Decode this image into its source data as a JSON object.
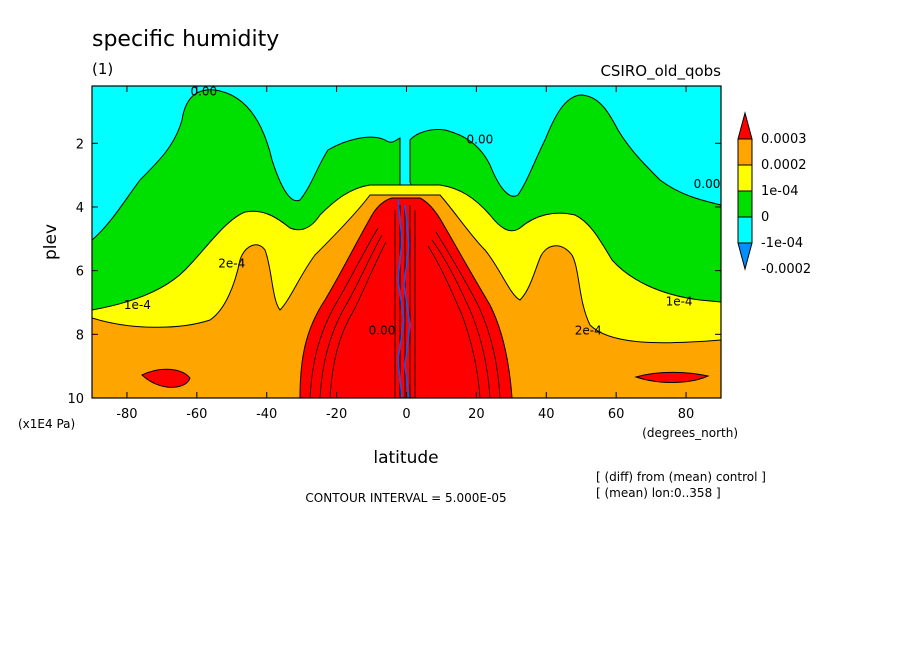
{
  "header": {
    "title": "specific humidity",
    "panel_label": "(1)",
    "dataset": "CSIRO_old_qobs",
    "contour_interval": "CONTOUR INTERVAL = 5.000E-05",
    "diff_note": "[ (diff) from (mean) control ]",
    "mean_note": "[ (mean) lon:0..358 ]"
  },
  "chart_data": {
    "type": "heatmap",
    "title": "specific humidity",
    "xlabel": "latitude",
    "xunits": "(degrees_north)",
    "ylabel": "plev",
    "yunits": "(x1E4 Pa)",
    "xlim": [
      -90,
      90
    ],
    "ylim": [
      10,
      0.2
    ],
    "x_ticks": [
      -80,
      -60,
      -40,
      -20,
      0,
      20,
      40,
      60,
      80
    ],
    "y_ticks": [
      2,
      4,
      6,
      8,
      10
    ],
    "colorbar": {
      "levels": [
        "0.0003",
        "0.0002",
        "1e-04",
        "0",
        "-1e-04",
        "-0.0002"
      ],
      "colors": [
        "#ff0000",
        "#ffa500",
        "#ffff00",
        "#00e000",
        "#00ffff",
        "#0090ff"
      ]
    },
    "contour_labels": [
      {
        "text": "0.00",
        "x": -58,
        "y": 0.5
      },
      {
        "text": "0.00",
        "x": 21,
        "y": 2.0
      },
      {
        "text": "0.00",
        "x": 86,
        "y": 3.4
      },
      {
        "text": "1e-4",
        "x": -77,
        "y": 7.2
      },
      {
        "text": "1e-4",
        "x": 78,
        "y": 7.1
      },
      {
        "text": "2e-4",
        "x": -50,
        "y": 5.9
      },
      {
        "text": "2e-4",
        "x": 52,
        "y": 8.0
      },
      {
        "text": "0.00",
        "x": -7,
        "y": 8.0
      }
    ]
  },
  "colors": {
    "red": "#ff0000",
    "orange": "#ffa500",
    "yellow": "#ffff00",
    "green": "#00e000",
    "cyan": "#00ffff",
    "blue": "#0090ff"
  }
}
